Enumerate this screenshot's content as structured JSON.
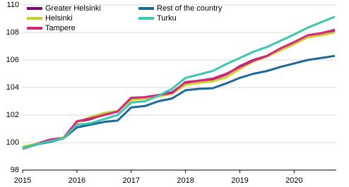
{
  "chart_data": {
    "type": "line",
    "categories": [
      "2015",
      null,
      null,
      null,
      "2016",
      null,
      null,
      null,
      "2017",
      null,
      null,
      null,
      "2018",
      null,
      null,
      null,
      "2019",
      null,
      null,
      null,
      "2020",
      null,
      null,
      null
    ],
    "series": [
      {
        "name": "Greater Helsinki",
        "color": "#82066f",
        "values": [
          99.6,
          99.9,
          100.2,
          100.35,
          101.5,
          101.7,
          102.05,
          102.25,
          103.25,
          103.3,
          103.45,
          103.65,
          104.35,
          104.5,
          104.6,
          104.95,
          105.55,
          106.0,
          106.3,
          106.8,
          107.25,
          107.75,
          107.95,
          108.15
        ]
      },
      {
        "name": "Helsinki",
        "color": "#c5d12b",
        "values": [
          99.7,
          99.9,
          100.15,
          100.35,
          101.45,
          101.85,
          102.15,
          102.3,
          103.1,
          103.2,
          103.35,
          103.55,
          104.2,
          104.35,
          104.45,
          104.75,
          105.35,
          105.9,
          106.25,
          106.7,
          107.15,
          107.65,
          107.8,
          108.0
        ]
      },
      {
        "name": "Tampere",
        "color": "#d6267a",
        "values": [
          99.55,
          99.85,
          100.2,
          100.3,
          101.55,
          101.75,
          102.0,
          102.25,
          103.25,
          103.3,
          103.45,
          103.6,
          104.4,
          104.5,
          104.65,
          105.0,
          105.5,
          105.95,
          106.3,
          106.85,
          107.3,
          107.8,
          107.95,
          108.2
        ]
      },
      {
        "name": "Rest of the country",
        "color": "#1b6997",
        "values": [
          99.6,
          99.85,
          100.05,
          100.3,
          101.1,
          101.3,
          101.5,
          101.6,
          102.55,
          102.65,
          103.0,
          103.2,
          103.8,
          103.9,
          103.95,
          104.3,
          104.7,
          105.0,
          105.2,
          105.5,
          105.75,
          106.0,
          106.15,
          106.3
        ]
      },
      {
        "name": "Turku",
        "color": "#3cc7b0",
        "values": [
          99.6,
          99.85,
          100.1,
          100.3,
          101.3,
          101.4,
          101.7,
          102.0,
          102.9,
          103.0,
          103.4,
          103.9,
          104.7,
          104.95,
          105.2,
          105.7,
          106.15,
          106.6,
          106.95,
          107.4,
          107.85,
          108.35,
          108.75,
          109.15
        ]
      }
    ],
    "ylim": [
      98,
      110
    ],
    "yticks": [
      98,
      100,
      102,
      104,
      106,
      108,
      110
    ],
    "grid": true,
    "legend": "top-left"
  }
}
